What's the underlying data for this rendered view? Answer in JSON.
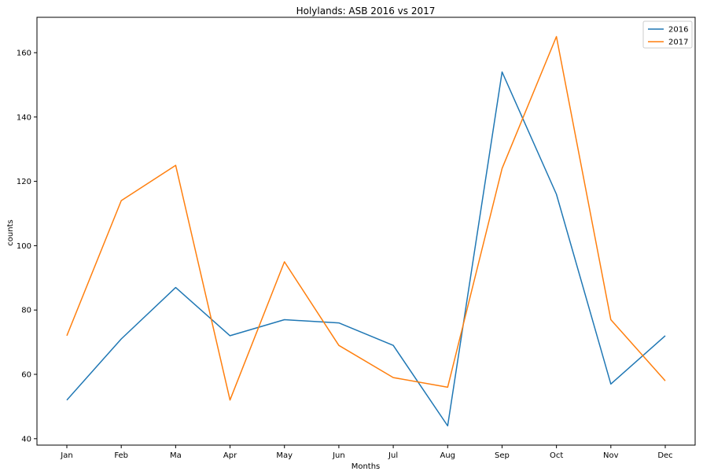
{
  "chart_data": {
    "type": "line",
    "title": "Holylands: ASB 2016 vs 2017",
    "xlabel": "Months",
    "ylabel": "counts",
    "categories": [
      "Jan",
      "Feb",
      "Ma",
      "Apr",
      "May",
      "Jun",
      "Jul",
      "Aug",
      "Sep",
      "Oct",
      "Nov",
      "Dec"
    ],
    "series": [
      {
        "name": "2016",
        "color": "#1f77b4",
        "values": [
          52,
          71,
          87,
          72,
          77,
          76,
          69,
          44,
          154,
          116,
          57,
          72
        ]
      },
      {
        "name": "2017",
        "color": "#ff7f0e",
        "values": [
          72,
          114,
          125,
          52,
          95,
          69,
          59,
          56,
          124,
          165,
          77,
          58
        ]
      }
    ],
    "ylim": [
      38,
      171
    ],
    "yticks": [
      40,
      60,
      80,
      100,
      120,
      140,
      160
    ],
    "grid": false,
    "legend_position": "top-right"
  }
}
